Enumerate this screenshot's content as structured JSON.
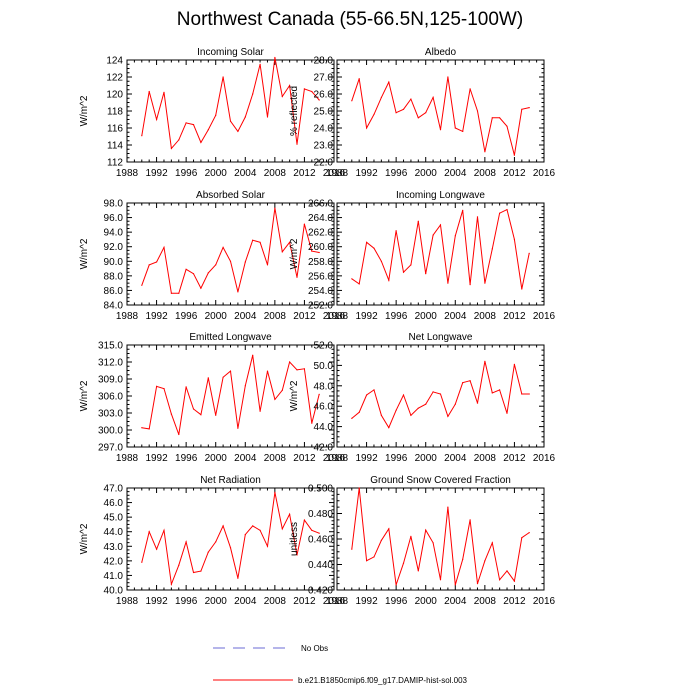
{
  "figure": {
    "title": "Northwest Canada (55-66.5N,125-100W)"
  },
  "legend": {
    "entries": [
      {
        "label": "No Obs",
        "color": "#6b6bd6",
        "style": "dashed"
      },
      {
        "label": "b.e21.B1850cmip6.f09_g17.DAMIP-hist-sol.003",
        "color": "#ff0000",
        "style": "solid"
      }
    ]
  },
  "colors": {
    "series": "#ff0000",
    "noobs": "#6b6bd6",
    "axis": "#000000"
  },
  "chart_data": [
    {
      "type": "line",
      "title": "Incoming Solar",
      "ylabel": "W/m^2",
      "xlim": [
        1988,
        2016
      ],
      "ylim": [
        112,
        124
      ],
      "xticks": [
        "1988",
        "1992",
        "1996",
        "2000",
        "2004",
        "2008",
        "2012",
        "2016"
      ],
      "yticks": [
        "112",
        "114",
        "116",
        "118",
        "120",
        "122",
        "124"
      ],
      "x": [
        1990,
        1991,
        1992,
        1993,
        1994,
        1995,
        1996,
        1997,
        1998,
        1999,
        2000,
        2001,
        2002,
        2003,
        2004,
        2005,
        2006,
        2007,
        2008,
        2009,
        2010,
        2011,
        2012,
        2013,
        2014
      ],
      "series": [
        {
          "values": [
            115.1,
            120.3,
            117.0,
            120.2,
            113.6,
            114.6,
            116.6,
            116.4,
            114.3,
            115.8,
            117.5,
            122.0,
            116.8,
            115.6,
            117.3,
            120.0,
            123.5,
            117.3,
            124.3,
            119.7,
            121.0,
            114.1,
            120.6,
            120.3,
            119.3
          ]
        }
      ]
    },
    {
      "type": "line",
      "title": "Albedo",
      "ylabel": "% reflected",
      "xlim": [
        1988,
        2016
      ],
      "ylim": [
        22,
        28
      ],
      "xticks": [
        "1988",
        "1992",
        "1996",
        "2000",
        "2004",
        "2008",
        "2012",
        "2016"
      ],
      "yticks": [
        "22.0",
        "23.0",
        "24.0",
        "25.0",
        "26.0",
        "27.0",
        "28.0"
      ],
      "x": [
        1990,
        1991,
        1992,
        1993,
        1994,
        1995,
        1996,
        1997,
        1998,
        1999,
        2000,
        2001,
        2002,
        2003,
        2004,
        2005,
        2006,
        2007,
        2008,
        2009,
        2010,
        2011,
        2012,
        2013,
        2014
      ],
      "series": [
        {
          "values": [
            25.6,
            26.9,
            24.0,
            24.8,
            25.8,
            26.7,
            24.9,
            25.1,
            25.7,
            24.6,
            24.9,
            25.8,
            23.9,
            27.0,
            24.0,
            23.8,
            26.3,
            25.0,
            22.6,
            24.6,
            24.6,
            24.1,
            22.4,
            25.1,
            25.2
          ]
        }
      ]
    },
    {
      "type": "line",
      "title": "Absorbed Solar",
      "ylabel": "W/m^2",
      "xlim": [
        1988,
        2016
      ],
      "ylim": [
        84,
        98
      ],
      "xticks": [
        "1988",
        "1992",
        "1996",
        "2000",
        "2004",
        "2008",
        "2012",
        "2016"
      ],
      "yticks": [
        "84.0",
        "86.0",
        "88.0",
        "90.0",
        "92.0",
        "94.0",
        "96.0",
        "98.0"
      ],
      "x": [
        1990,
        1991,
        1992,
        1993,
        1994,
        1995,
        1996,
        1997,
        1998,
        1999,
        2000,
        2001,
        2002,
        2003,
        2004,
        2005,
        2006,
        2007,
        2008,
        2009,
        2010,
        2011,
        2012,
        2013,
        2014
      ],
      "series": [
        {
          "values": [
            86.7,
            89.5,
            89.9,
            91.9,
            85.6,
            85.6,
            88.9,
            88.3,
            86.3,
            88.4,
            89.5,
            91.9,
            90.0,
            85.8,
            89.9,
            92.9,
            92.6,
            89.5,
            97.3,
            91.3,
            92.6,
            87.8,
            95.1,
            91.4,
            91.2
          ]
        }
      ]
    },
    {
      "type": "line",
      "title": "Incoming Longwave",
      "ylabel": "W/m^2",
      "xlim": [
        1988,
        2016
      ],
      "ylim": [
        252,
        266
      ],
      "xticks": [
        "1988",
        "1992",
        "1996",
        "2000",
        "2004",
        "2008",
        "2012",
        "2016"
      ],
      "yticks": [
        "252.0",
        "254.0",
        "256.0",
        "258.0",
        "260.0",
        "262.0",
        "264.0",
        "266.0"
      ],
      "x": [
        1990,
        1991,
        1992,
        1993,
        1994,
        1995,
        1996,
        1997,
        1998,
        1999,
        2000,
        2001,
        2002,
        2003,
        2004,
        2005,
        2006,
        2007,
        2008,
        2009,
        2010,
        2011,
        2012,
        2013,
        2014
      ],
      "series": [
        {
          "values": [
            255.6,
            254.9,
            260.6,
            259.8,
            258.0,
            255.4,
            262.2,
            256.5,
            257.5,
            263.5,
            256.3,
            261.6,
            263.0,
            255.0,
            261.5,
            265.0,
            254.8,
            264.1,
            255.0,
            259.7,
            264.6,
            265.1,
            261.0,
            254.2,
            259.1
          ]
        }
      ]
    },
    {
      "type": "line",
      "title": "Emitted Longwave",
      "ylabel": "W/m^2",
      "xlim": [
        1988,
        2016
      ],
      "ylim": [
        297,
        315
      ],
      "xticks": [
        "1988",
        "1992",
        "1996",
        "2000",
        "2004",
        "2008",
        "2012",
        "2016"
      ],
      "yticks": [
        "297.0",
        "300.0",
        "303.0",
        "306.0",
        "309.0",
        "312.0",
        "315.0"
      ],
      "x": [
        1990,
        1991,
        1992,
        1993,
        1994,
        1995,
        1996,
        1997,
        1998,
        1999,
        2000,
        2001,
        2002,
        2003,
        2004,
        2005,
        2006,
        2007,
        2008,
        2009,
        2010,
        2011,
        2012,
        2013,
        2014
      ],
      "series": [
        {
          "values": [
            300.4,
            300.2,
            307.7,
            307.3,
            302.8,
            299.2,
            307.6,
            303.7,
            302.7,
            309.2,
            302.6,
            309.3,
            310.4,
            300.3,
            307.8,
            313.2,
            303.3,
            310.4,
            305.4,
            307.0,
            312.0,
            310.6,
            310.8,
            301.2,
            306.3
          ]
        }
      ]
    },
    {
      "type": "line",
      "title": "Net Longwave",
      "ylabel": "W/m^2",
      "xlim": [
        1988,
        2016
      ],
      "ylim": [
        42,
        52
      ],
      "xticks": [
        "1988",
        "1992",
        "1996",
        "2000",
        "2004",
        "2008",
        "2012",
        "2016"
      ],
      "yticks": [
        "42.0",
        "44.0",
        "46.0",
        "48.0",
        "50.0",
        "52.0"
      ],
      "x": [
        1990,
        1991,
        1992,
        1993,
        1994,
        1995,
        1996,
        1997,
        1998,
        1999,
        2000,
        2001,
        2002,
        2003,
        2004,
        2005,
        2006,
        2007,
        2008,
        2009,
        2010,
        2011,
        2012,
        2013,
        2014
      ],
      "series": [
        {
          "values": [
            44.8,
            45.4,
            47.1,
            47.6,
            45.1,
            43.9,
            45.6,
            47.1,
            45.1,
            45.8,
            46.2,
            47.4,
            47.2,
            45.0,
            46.2,
            48.3,
            48.5,
            46.3,
            50.4,
            47.3,
            47.6,
            45.3,
            50.1,
            47.2,
            47.2
          ]
        }
      ]
    },
    {
      "type": "line",
      "title": "Net Radiation",
      "ylabel": "W/m^2",
      "xlim": [
        1988,
        2016
      ],
      "ylim": [
        40,
        47
      ],
      "xticks": [
        "1988",
        "1992",
        "1996",
        "2000",
        "2004",
        "2008",
        "2012",
        "2016"
      ],
      "yticks": [
        "40.0",
        "41.0",
        "42.0",
        "43.0",
        "44.0",
        "45.0",
        "46.0",
        "47.0"
      ],
      "x": [
        1990,
        1991,
        1992,
        1993,
        1994,
        1995,
        1996,
        1997,
        1998,
        1999,
        2000,
        2001,
        2002,
        2003,
        2004,
        2005,
        2006,
        2007,
        2008,
        2009,
        2010,
        2011,
        2012,
        2013,
        2014
      ],
      "series": [
        {
          "values": [
            41.9,
            44.0,
            42.8,
            44.1,
            40.4,
            41.7,
            43.3,
            41.2,
            41.3,
            42.6,
            43.3,
            44.4,
            42.9,
            40.8,
            43.8,
            44.4,
            44.1,
            43.0,
            46.7,
            44.2,
            45.2,
            42.4,
            44.8,
            44.1,
            43.9
          ]
        }
      ]
    },
    {
      "type": "line",
      "title": "Ground Snow Covered Fraction",
      "ylabel": "unitless",
      "xlim": [
        1988,
        2016
      ],
      "ylim": [
        0.42,
        0.5
      ],
      "xticks": [
        "1988",
        "1992",
        "1996",
        "2000",
        "2004",
        "2008",
        "2012",
        "2016"
      ],
      "yticks": [
        "0.420",
        "0.440",
        "0.460",
        "0.480",
        "0.500"
      ],
      "x": [
        1990,
        1991,
        1992,
        1993,
        1994,
        1995,
        1996,
        1997,
        1998,
        1999,
        2000,
        2001,
        2002,
        2003,
        2004,
        2005,
        2006,
        2007,
        2008,
        2009,
        2010,
        2011,
        2012,
        2013,
        2014
      ],
      "series": [
        {
          "values": [
            0.452,
            0.5,
            0.443,
            0.446,
            0.459,
            0.468,
            0.424,
            0.441,
            0.462,
            0.435,
            0.467,
            0.457,
            0.428,
            0.485,
            0.424,
            0.444,
            0.475,
            0.425,
            0.443,
            0.457,
            0.428,
            0.435,
            0.427,
            0.461,
            0.465
          ]
        }
      ]
    }
  ]
}
